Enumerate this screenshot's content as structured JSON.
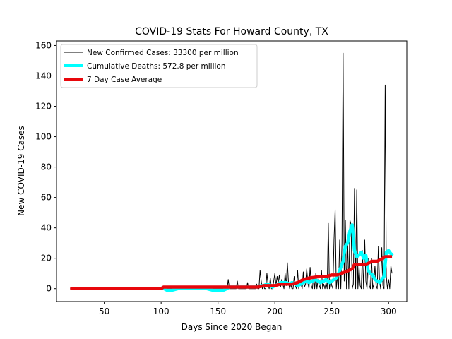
{
  "chart_data": {
    "type": "line",
    "title": "COVID-19 Stats For Howard County, TX",
    "xlabel": "Days Since 2020 Began",
    "ylabel": "New COVID-19 Cases",
    "xlim": [
      8,
      316
    ],
    "ylim": [
      -8.5,
      163
    ],
    "xticks": [
      50,
      100,
      150,
      200,
      250,
      300
    ],
    "yticks": [
      0,
      20,
      40,
      60,
      80,
      100,
      120,
      140,
      160
    ],
    "grid": false,
    "legend_position": "top-left",
    "series": [
      {
        "name": "New Confirmed Cases: 33300 per million",
        "color": "#000000",
        "x": [
          20,
          100,
          158,
          159,
          160,
          166,
          167,
          168,
          175,
          176,
          177,
          183,
          184,
          185,
          186,
          187,
          188,
          189,
          190,
          191,
          192,
          193,
          194,
          195,
          196,
          197,
          198,
          199,
          200,
          201,
          202,
          203,
          204,
          205,
          206,
          207,
          208,
          209,
          210,
          211,
          212,
          213,
          214,
          215,
          216,
          217,
          218,
          219,
          220,
          221,
          222,
          223,
          224,
          225,
          226,
          227,
          228,
          229,
          230,
          231,
          232,
          233,
          234,
          235,
          236,
          237,
          238,
          239,
          240,
          241,
          242,
          243,
          244,
          245,
          246,
          247,
          248,
          249,
          250,
          251,
          252,
          253,
          254,
          255,
          256,
          257,
          258,
          259,
          260,
          261,
          262,
          263,
          264,
          265,
          266,
          267,
          268,
          269,
          270,
          271,
          272,
          273,
          274,
          275,
          276,
          277,
          278,
          279,
          280,
          281,
          282,
          283,
          284,
          285,
          286,
          287,
          288,
          289,
          290,
          291,
          292,
          293,
          294,
          295,
          296,
          297,
          298,
          299,
          300,
          301,
          302,
          303
        ],
        "y": [
          0,
          0,
          0,
          6,
          0,
          0,
          5,
          0,
          0,
          4,
          0,
          0,
          3,
          0,
          0,
          12,
          5,
          0,
          2,
          0,
          0,
          10,
          3,
          0,
          7,
          0,
          0,
          5,
          10,
          2,
          8,
          4,
          9,
          1,
          6,
          3,
          0,
          10,
          2,
          17,
          4,
          0,
          3,
          0,
          0,
          8,
          2,
          0,
          12,
          0,
          5,
          3,
          0,
          11,
          1,
          3,
          13,
          4,
          0,
          14,
          2,
          0,
          8,
          0,
          10,
          0,
          6,
          2,
          0,
          12,
          0,
          3,
          0,
          4,
          0,
          43,
          0,
          6,
          2,
          0,
          32,
          52,
          0,
          8,
          0,
          32,
          0,
          30,
          155,
          5,
          45,
          0,
          30,
          0,
          45,
          42,
          0,
          3,
          66,
          0,
          65,
          0,
          15,
          2,
          0,
          25,
          0,
          32,
          5,
          0,
          20,
          2,
          0,
          20,
          0,
          3,
          15,
          2,
          0,
          28,
          5,
          0,
          27,
          2,
          0,
          134,
          8,
          0,
          6,
          0,
          15,
          10
        ]
      },
      {
        "name": "Cumulative Deaths: 572.8 per million",
        "color": "#00ffff",
        "x": [
          100,
          105,
          110,
          115,
          120,
          125,
          130,
          135,
          140,
          145,
          150,
          155,
          158,
          160,
          170,
          180,
          185,
          188,
          190,
          193,
          195,
          198,
          200,
          203,
          205,
          208,
          210,
          213,
          215,
          218,
          220,
          223,
          225,
          228,
          230,
          233,
          235,
          238,
          240,
          243,
          245,
          248,
          250,
          252,
          254,
          256,
          258,
          260,
          262,
          264,
          266,
          268,
          270,
          272,
          274,
          276,
          278,
          280,
          282,
          284,
          286,
          288,
          290,
          292,
          294,
          296,
          298,
          300,
          302,
          304
        ],
        "y": [
          1,
          -1,
          -1,
          0,
          0,
          0,
          0,
          0,
          0,
          -1,
          -1,
          -1,
          0,
          1,
          1,
          1,
          1,
          2,
          2,
          3,
          3,
          1,
          2,
          3,
          4,
          4,
          4,
          3,
          4,
          3,
          2,
          3,
          4,
          5,
          4,
          5,
          6,
          5,
          4,
          5,
          6,
          4,
          5,
          6,
          7,
          10,
          14,
          18,
          28,
          30,
          38,
          42,
          25,
          21,
          22,
          24,
          20,
          22,
          12,
          10,
          9,
          6,
          5,
          4,
          6,
          8,
          24,
          25,
          23,
          22
        ]
      },
      {
        "name": "7 Day Case Average",
        "color": "#e8070c",
        "x": [
          20,
          100,
          102,
          160,
          165,
          185,
          190,
          200,
          205,
          210,
          215,
          220,
          225,
          230,
          240,
          245,
          250,
          255,
          258,
          262,
          265,
          268,
          270,
          275,
          280,
          283,
          285,
          290,
          295,
          297,
          300,
          303
        ],
        "y": [
          0,
          0,
          1,
          1,
          1,
          1,
          2,
          2,
          3,
          3,
          3,
          4,
          6,
          7,
          8,
          8,
          9,
          9,
          10,
          11,
          12,
          13,
          16,
          16,
          16,
          17,
          18,
          18,
          20,
          21,
          21,
          21
        ]
      }
    ]
  }
}
